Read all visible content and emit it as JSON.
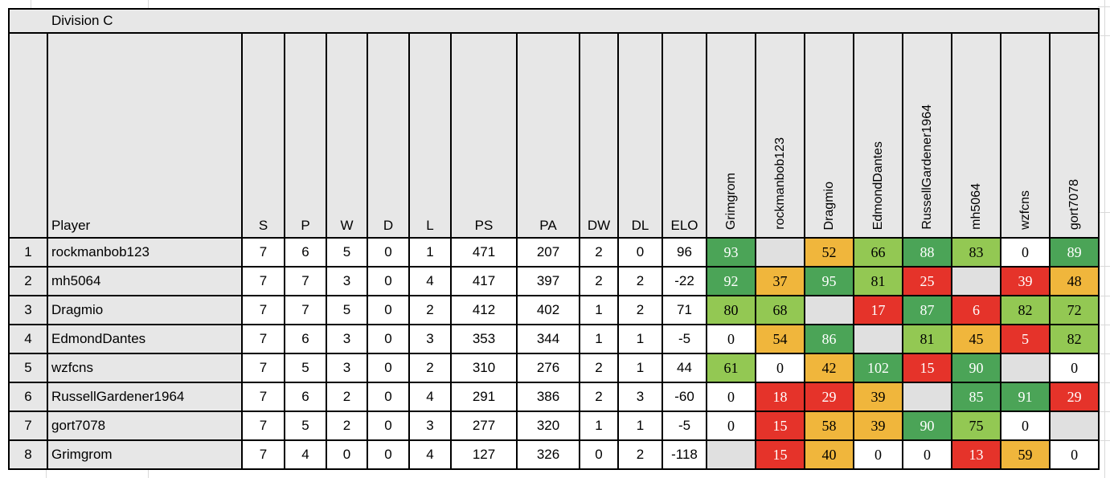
{
  "title": "Division C",
  "columns": {
    "rank": "",
    "player": "Player",
    "stats": [
      "S",
      "P",
      "W",
      "D",
      "L",
      "PS",
      "PA",
      "DW",
      "DL",
      "ELO"
    ]
  },
  "opponents": [
    "Grimgrom",
    "rockmanbob123",
    "Dragmio",
    "EdmondDantes",
    "RussellGardener1964",
    "mh5064",
    "wzfcns",
    "gort7078"
  ],
  "colors": {
    "green": "#4ba457",
    "light_green": "#93c853",
    "orange": "#f0b63c",
    "red": "#e5332a",
    "white": "#ffffff",
    "blank": "#e0e0e0",
    "header_bg": "#e7e7e7",
    "border": "#000000"
  },
  "rows": [
    {
      "rank": "1",
      "player": "rockmanbob123",
      "stats": [
        "7",
        "6",
        "5",
        "0",
        "1",
        "471",
        "207",
        "2",
        "0",
        "96"
      ],
      "matrix": [
        {
          "v": "93",
          "c": "green"
        },
        {
          "v": "",
          "c": "blank"
        },
        {
          "v": "52",
          "c": "orange"
        },
        {
          "v": "66",
          "c": "light_green"
        },
        {
          "v": "88",
          "c": "green"
        },
        {
          "v": "83",
          "c": "light_green"
        },
        {
          "v": "0",
          "c": "white"
        },
        {
          "v": "89",
          "c": "green"
        }
      ]
    },
    {
      "rank": "2",
      "player": "mh5064",
      "stats": [
        "7",
        "7",
        "3",
        "0",
        "4",
        "417",
        "397",
        "2",
        "2",
        "-22"
      ],
      "matrix": [
        {
          "v": "92",
          "c": "green"
        },
        {
          "v": "37",
          "c": "orange"
        },
        {
          "v": "95",
          "c": "green"
        },
        {
          "v": "81",
          "c": "light_green"
        },
        {
          "v": "25",
          "c": "red"
        },
        {
          "v": "",
          "c": "blank"
        },
        {
          "v": "39",
          "c": "red"
        },
        {
          "v": "48",
          "c": "orange"
        }
      ]
    },
    {
      "rank": "3",
      "player": "Dragmio",
      "stats": [
        "7",
        "7",
        "5",
        "0",
        "2",
        "412",
        "402",
        "1",
        "2",
        "71"
      ],
      "matrix": [
        {
          "v": "80",
          "c": "light_green"
        },
        {
          "v": "68",
          "c": "light_green"
        },
        {
          "v": "",
          "c": "blank"
        },
        {
          "v": "17",
          "c": "red"
        },
        {
          "v": "87",
          "c": "green"
        },
        {
          "v": "6",
          "c": "red"
        },
        {
          "v": "82",
          "c": "light_green"
        },
        {
          "v": "72",
          "c": "light_green"
        }
      ]
    },
    {
      "rank": "4",
      "player": "EdmondDantes",
      "stats": [
        "7",
        "6",
        "3",
        "0",
        "3",
        "353",
        "344",
        "1",
        "1",
        "-5"
      ],
      "matrix": [
        {
          "v": "0",
          "c": "white"
        },
        {
          "v": "54",
          "c": "orange"
        },
        {
          "v": "86",
          "c": "green"
        },
        {
          "v": "",
          "c": "blank"
        },
        {
          "v": "81",
          "c": "light_green"
        },
        {
          "v": "45",
          "c": "orange"
        },
        {
          "v": "5",
          "c": "red"
        },
        {
          "v": "82",
          "c": "light_green"
        }
      ]
    },
    {
      "rank": "5",
      "player": "wzfcns",
      "stats": [
        "7",
        "5",
        "3",
        "0",
        "2",
        "310",
        "276",
        "2",
        "1",
        "44"
      ],
      "matrix": [
        {
          "v": "61",
          "c": "light_green"
        },
        {
          "v": "0",
          "c": "white"
        },
        {
          "v": "42",
          "c": "orange"
        },
        {
          "v": "102",
          "c": "green"
        },
        {
          "v": "15",
          "c": "red"
        },
        {
          "v": "90",
          "c": "green"
        },
        {
          "v": "",
          "c": "blank"
        },
        {
          "v": "0",
          "c": "white"
        }
      ]
    },
    {
      "rank": "6",
      "player": "RussellGardener1964",
      "stats": [
        "7",
        "6",
        "2",
        "0",
        "4",
        "291",
        "386",
        "2",
        "3",
        "-60"
      ],
      "matrix": [
        {
          "v": "0",
          "c": "white"
        },
        {
          "v": "18",
          "c": "red"
        },
        {
          "v": "29",
          "c": "red"
        },
        {
          "v": "39",
          "c": "orange"
        },
        {
          "v": "",
          "c": "blank"
        },
        {
          "v": "85",
          "c": "green"
        },
        {
          "v": "91",
          "c": "green"
        },
        {
          "v": "29",
          "c": "red"
        }
      ]
    },
    {
      "rank": "7",
      "player": "gort7078",
      "stats": [
        "7",
        "5",
        "2",
        "0",
        "3",
        "277",
        "320",
        "1",
        "1",
        "-5"
      ],
      "matrix": [
        {
          "v": "0",
          "c": "white"
        },
        {
          "v": "15",
          "c": "red"
        },
        {
          "v": "58",
          "c": "orange"
        },
        {
          "v": "39",
          "c": "orange"
        },
        {
          "v": "90",
          "c": "green"
        },
        {
          "v": "75",
          "c": "light_green"
        },
        {
          "v": "0",
          "c": "white"
        },
        {
          "v": "",
          "c": "blank"
        }
      ]
    },
    {
      "rank": "8",
      "player": "Grimgrom",
      "stats": [
        "7",
        "4",
        "0",
        "0",
        "4",
        "127",
        "326",
        "0",
        "2",
        "-118"
      ],
      "matrix": [
        {
          "v": "",
          "c": "blank"
        },
        {
          "v": "15",
          "c": "red"
        },
        {
          "v": "40",
          "c": "orange"
        },
        {
          "v": "0",
          "c": "white"
        },
        {
          "v": "0",
          "c": "white"
        },
        {
          "v": "13",
          "c": "red"
        },
        {
          "v": "59",
          "c": "orange"
        },
        {
          "v": "0",
          "c": "white"
        }
      ]
    }
  ]
}
